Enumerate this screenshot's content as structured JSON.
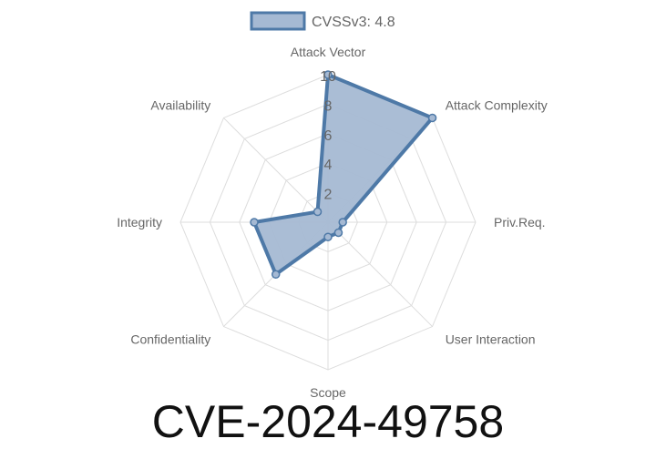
{
  "chart_data": {
    "type": "radar",
    "axes": [
      "Attack Vector",
      "Attack Complexity",
      "Priv.Req.",
      "User Interaction",
      "Scope",
      "Confidentiality",
      "Integrity",
      "Availability"
    ],
    "series": [
      {
        "name": "CVSSv3: 4.8",
        "values": [
          10,
          10,
          1,
          1,
          1,
          5,
          5,
          1
        ]
      }
    ],
    "rlim": [
      0,
      10
    ],
    "ticks": [
      "2",
      "4",
      "6",
      "8",
      "10"
    ],
    "grid": true,
    "legend": "top",
    "colors": {
      "line": "#4e79a7",
      "fill": "#a5b9d3",
      "grid": "#dddddd"
    }
  },
  "title": "CVE-2024-49758"
}
